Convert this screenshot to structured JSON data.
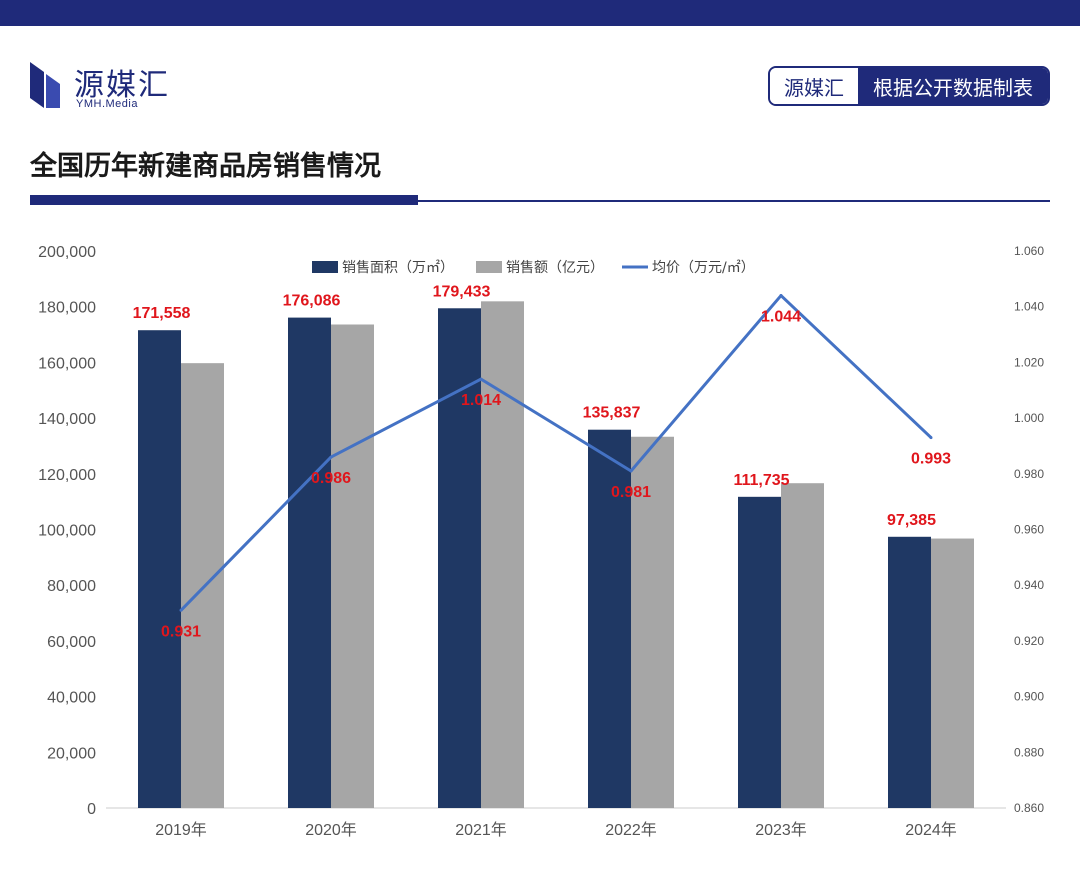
{
  "header": {
    "logo_text": "源媒汇",
    "logo_sub": "YMH.Media",
    "source_left": "源媒汇",
    "source_right": "根据公开数据制表"
  },
  "page_title": "全国历年新建商品房销售情况",
  "colors": {
    "brand": "#1f2a7a",
    "area_bar": "#1f3864",
    "amount_bar": "#a6a6a6",
    "price_line": "#4472c4",
    "label_red": "#e0161c"
  },
  "chart_data": {
    "type": "bar",
    "title": "",
    "categories": [
      "2019年",
      "2020年",
      "2021年",
      "2022年",
      "2023年",
      "2024年"
    ],
    "legend_position": "top",
    "grid": false,
    "y_left": {
      "lim": [
        0,
        200000
      ],
      "ticks": [
        "0",
        "20,000",
        "40,000",
        "60,000",
        "80,000",
        "100,000",
        "120,000",
        "140,000",
        "160,000",
        "180,000",
        "200,000"
      ]
    },
    "y_right": {
      "lim": [
        0.86,
        1.06
      ],
      "ticks": [
        "0.860",
        "0.880",
        "0.900",
        "0.920",
        "0.940",
        "0.960",
        "0.980",
        "1.000",
        "1.020",
        "1.040",
        "1.060"
      ]
    },
    "series": [
      {
        "name": "销售面积（万㎡）",
        "type": "bar",
        "axis": "left",
        "values": [
          171558,
          176086,
          179433,
          135837,
          111735,
          97385
        ],
        "labels": [
          "171,558",
          "176,086",
          "179,433",
          "135,837",
          "111,735",
          "97,385"
        ]
      },
      {
        "name": "销售额（亿元）",
        "type": "bar",
        "axis": "left",
        "values": [
          159725,
          173613,
          181930,
          133308,
          116622,
          96750
        ]
      },
      {
        "name": "均价（万元/㎡）",
        "type": "line",
        "axis": "right",
        "values": [
          0.931,
          0.986,
          1.014,
          0.981,
          1.044,
          0.993
        ],
        "labels": [
          "0.931",
          "0.986",
          "1.014",
          "0.981",
          "1.044",
          "0.993"
        ]
      }
    ]
  }
}
